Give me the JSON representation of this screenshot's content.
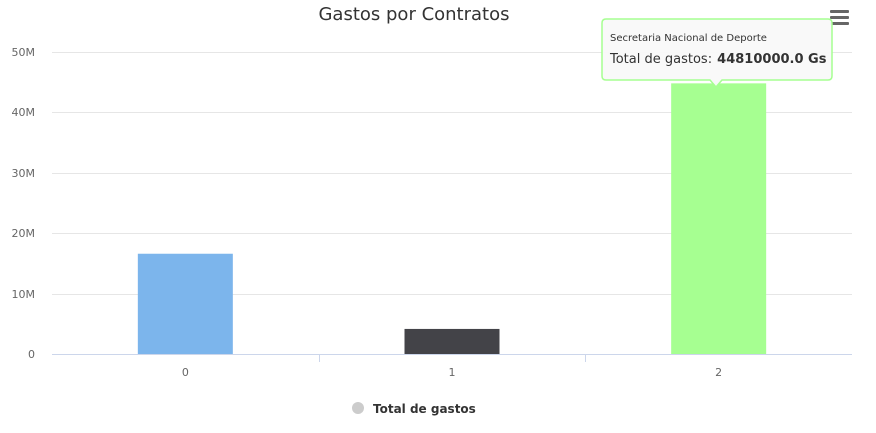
{
  "chart_data": {
    "type": "bar",
    "title": "Gastos por Contratos",
    "xlabel": "",
    "ylabel": "",
    "categories": [
      "0",
      "1",
      "2"
    ],
    "series": [
      {
        "name": "Total de gastos",
        "values": [
          16600000,
          4150000,
          44810000
        ],
        "colors": [
          "#7cb5ec",
          "#434348",
          "#a6ff91"
        ]
      }
    ],
    "y_ticks": [
      "0",
      "10M",
      "20M",
      "30M",
      "40M",
      "50M"
    ],
    "y_tick_values": [
      0,
      10000000,
      20000000,
      30000000,
      40000000,
      50000000
    ],
    "ylim": [
      0,
      50000000
    ],
    "grid": true,
    "legend_position": "bottom-center",
    "legend_marker_color": "#cccccc",
    "tooltip": {
      "category_index": 2,
      "title": "Secretaria Nacional de Deporte",
      "label": "Total de gastos:",
      "value": "44810000.0 Gs",
      "border_color": "#a6ff91"
    },
    "menu_icon": "hamburger-menu-icon"
  }
}
